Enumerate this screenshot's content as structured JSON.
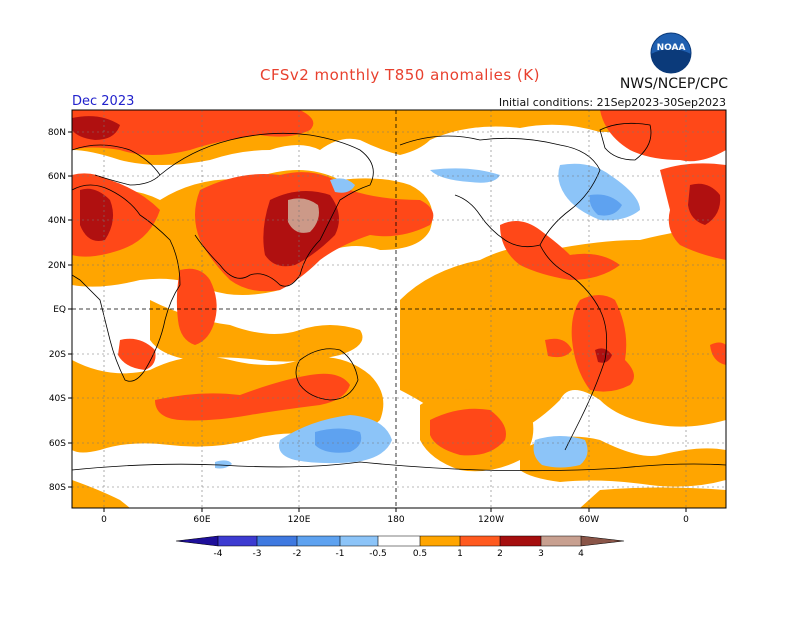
{
  "header": {
    "title": "CFSv2 monthly T850 anomalies (K)",
    "agency": "NWS/NCEP/CPC",
    "month": "Dec 2023",
    "initial_conditions": "Initial conditions: 21Sep2023-30Sep2023",
    "logo_text": "NOAA"
  },
  "axes": {
    "lat_labels": [
      "80N",
      "60N",
      "40N",
      "20N",
      "EQ",
      "20S",
      "40S",
      "60S",
      "80S"
    ],
    "lon_labels": [
      "0",
      "60E",
      "120E",
      "180",
      "120W",
      "60W",
      "0"
    ]
  },
  "colorbar": {
    "ticks": [
      "-4",
      "-3",
      "-2",
      "-1",
      "-0.5",
      "0.5",
      "1",
      "2",
      "3",
      "4"
    ],
    "colors": [
      "#1e0f9a",
      "#3d3bd1",
      "#3f79e0",
      "#5ea2f0",
      "#8cc4f8",
      "#ffffff",
      "#ffa500",
      "#ff5a1f",
      "#e02010",
      "#a50e0e",
      "#c8a090",
      "#8a5548"
    ]
  },
  "legend_colors": {
    "weak_warm": "#ffa500",
    "warm": "#ff5a1f",
    "hot": "#b01010",
    "very_hot": "#cc9988",
    "cool": "#8cc4f8",
    "cold": "#5ea2f0"
  }
}
